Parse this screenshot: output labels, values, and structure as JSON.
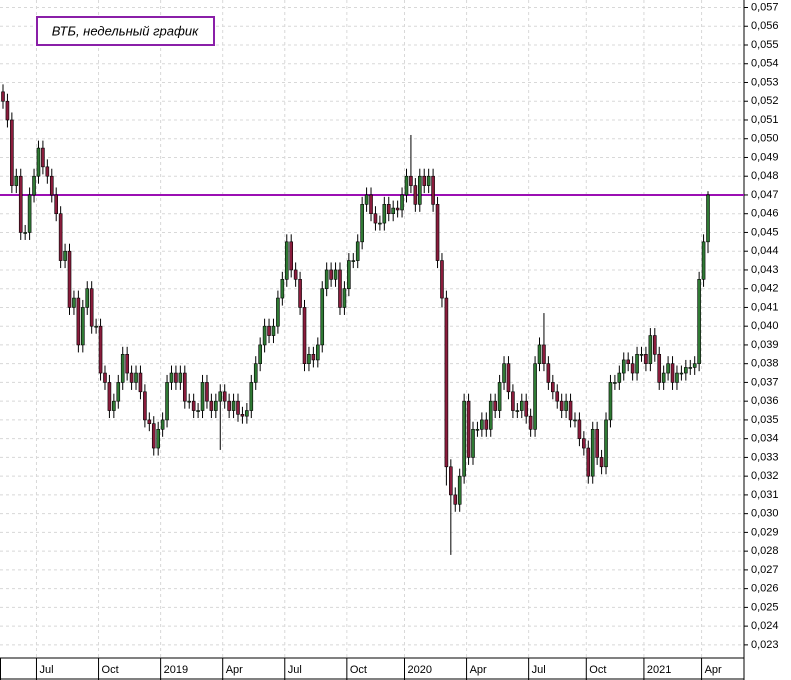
{
  "chart_data": {
    "type": "candlestick",
    "title": "ВТБ, недельный график",
    "categories": [
      null,
      null,
      null,
      null,
      null,
      null,
      null,
      null,
      "Jul",
      null,
      null,
      null,
      null,
      null,
      null,
      null,
      null,
      null,
      null,
      null,
      null,
      null,
      "Oct",
      null,
      null,
      null,
      null,
      null,
      null,
      null,
      null,
      null,
      null,
      null,
      null,
      null,
      "2019",
      null,
      null,
      null,
      null,
      null,
      null,
      null,
      null,
      null,
      null,
      null,
      null,
      null,
      "Apr",
      null,
      null,
      null,
      null,
      null,
      null,
      null,
      null,
      null,
      null,
      null,
      null,
      null,
      "Jul",
      null,
      null,
      null,
      null,
      null,
      null,
      null,
      null,
      null,
      null,
      null,
      null,
      null,
      "Oct",
      null,
      null,
      null,
      null,
      null,
      null,
      null,
      null,
      null,
      null,
      null,
      null,
      "2020",
      null,
      null,
      null,
      null,
      null,
      null,
      null,
      null,
      null,
      null,
      null,
      null,
      null,
      "Apr",
      null,
      null,
      null,
      null,
      null,
      null,
      null,
      null,
      null,
      null,
      null,
      null,
      null,
      "Jul",
      null,
      null,
      null,
      null,
      null,
      null,
      null,
      null,
      null,
      null,
      null,
      null,
      "Oct",
      null,
      null,
      null,
      null,
      null,
      null,
      null,
      null,
      null,
      null,
      null,
      null,
      "2021",
      null,
      null,
      null,
      null,
      null,
      null,
      null,
      null,
      null,
      null,
      null,
      null,
      "Apr",
      null
    ],
    "open": [
      0.0525,
      0.052,
      0.051,
      0.0475,
      0.048,
      0.045,
      0.045,
      0.047,
      0.048,
      0.0495,
      0.0485,
      0.048,
      0.047,
      0.046,
      0.0435,
      0.044,
      0.041,
      0.0415,
      0.039,
      0.041,
      0.042,
      0.04,
      0.04,
      0.0375,
      0.037,
      0.0355,
      0.036,
      0.037,
      0.0385,
      0.0375,
      0.037,
      0.0375,
      0.0365,
      0.035,
      0.0348,
      0.0335,
      0.0345,
      0.035,
      0.037,
      0.0375,
      0.037,
      0.0375,
      0.036,
      0.036,
      0.0355,
      0.0355,
      0.037,
      0.036,
      0.0355,
      0.036,
      0.0365,
      0.036,
      0.0355,
      0.036,
      0.0353,
      0.0352,
      0.0355,
      0.037,
      0.038,
      0.039,
      0.04,
      0.0395,
      0.04,
      0.0415,
      0.0425,
      0.0445,
      0.043,
      0.0425,
      0.041,
      0.038,
      0.0385,
      0.0382,
      0.039,
      0.042,
      0.043,
      0.0425,
      0.043,
      0.041,
      0.042,
      0.0435,
      0.0435,
      0.0445,
      0.0465,
      0.047,
      0.046,
      0.0455,
      0.0455,
      0.0465,
      0.046,
      0.0463,
      0.0462,
      0.047,
      0.048,
      0.0475,
      0.0465,
      0.048,
      0.0475,
      0.048,
      0.0465,
      0.0435,
      0.0415,
      0.0325,
      0.031,
      0.0305,
      0.032,
      0.036,
      0.033,
      0.0345,
      0.0345,
      0.035,
      0.0345,
      0.036,
      0.0355,
      0.037,
      0.038,
      0.0365,
      0.0355,
      0.0355,
      0.036,
      0.0352,
      0.0345,
      0.038,
      0.039,
      0.038,
      0.037,
      0.0365,
      0.036,
      0.0355,
      0.036,
      0.035,
      0.035,
      0.034,
      0.0335,
      0.032,
      0.0345,
      0.033,
      0.0325,
      0.035,
      0.037,
      0.037,
      0.0375,
      0.0382,
      0.038,
      0.0375,
      0.0385,
      0.0385,
      0.038,
      0.0395,
      0.0385,
      0.037,
      0.0375,
      0.038,
      0.037,
      0.0375,
      0.0375,
      0.0378,
      0.0378,
      0.038,
      0.0425,
      0.0445
    ],
    "high": [
      0.0529,
      0.0524,
      0.0514,
      0.0484,
      0.0484,
      0.0454,
      0.0474,
      0.0484,
      0.0499,
      0.0499,
      0.0489,
      0.0484,
      0.0474,
      0.0464,
      0.0444,
      0.0444,
      0.0419,
      0.0419,
      0.0414,
      0.0424,
      0.0424,
      0.0404,
      0.0404,
      0.0379,
      0.0374,
      0.0364,
      0.0374,
      0.0389,
      0.0389,
      0.0379,
      0.0379,
      0.0379,
      0.0369,
      0.0354,
      0.0352,
      0.0349,
      0.0354,
      0.0374,
      0.0379,
      0.0379,
      0.0379,
      0.0379,
      0.0364,
      0.0364,
      0.0359,
      0.0374,
      0.0374,
      0.0364,
      0.0364,
      0.0369,
      0.0369,
      0.0364,
      0.0364,
      0.0364,
      0.0357,
      0.0359,
      0.0374,
      0.0384,
      0.0394,
      0.0404,
      0.0404,
      0.0404,
      0.0419,
      0.0429,
      0.0449,
      0.0449,
      0.0434,
      0.0429,
      0.0414,
      0.0389,
      0.0389,
      0.0394,
      0.0424,
      0.0434,
      0.0434,
      0.0434,
      0.0434,
      0.0424,
      0.0439,
      0.0439,
      0.0449,
      0.0469,
      0.0474,
      0.0474,
      0.0464,
      0.0459,
      0.0469,
      0.0469,
      0.0467,
      0.0467,
      0.0474,
      0.0484,
      0.0502,
      0.0479,
      0.0484,
      0.0484,
      0.0484,
      0.0484,
      0.0469,
      0.0439,
      0.0419,
      0.0329,
      0.0314,
      0.0324,
      0.0364,
      0.0364,
      0.0349,
      0.0349,
      0.0354,
      0.0354,
      0.0364,
      0.0364,
      0.0374,
      0.0384,
      0.0384,
      0.0369,
      0.0359,
      0.0364,
      0.0364,
      0.0356,
      0.0384,
      0.0394,
      0.0407,
      0.0384,
      0.0374,
      0.0369,
      0.0364,
      0.0364,
      0.0364,
      0.0354,
      0.0354,
      0.0344,
      0.0339,
      0.0349,
      0.0349,
      0.0334,
      0.0354,
      0.0374,
      0.0374,
      0.0379,
      0.0386,
      0.0386,
      0.0384,
      0.0389,
      0.0389,
      0.0389,
      0.0399,
      0.0399,
      0.0389,
      0.0379,
      0.0384,
      0.0384,
      0.0379,
      0.0379,
      0.0382,
      0.0382,
      0.0384,
      0.0429,
      0.0449,
      0.0472
    ],
    "low": [
      0.0516,
      0.0506,
      0.0471,
      0.0471,
      0.0446,
      0.0446,
      0.0446,
      0.0466,
      0.0476,
      0.0481,
      0.0476,
      0.0466,
      0.0456,
      0.0431,
      0.0431,
      0.0406,
      0.0406,
      0.0386,
      0.0386,
      0.0406,
      0.0396,
      0.0396,
      0.0371,
      0.0366,
      0.0351,
      0.0351,
      0.0356,
      0.0366,
      0.0371,
      0.0366,
      0.0366,
      0.0361,
      0.0346,
      0.0344,
      0.0331,
      0.0331,
      0.0341,
      0.0346,
      0.0366,
      0.0366,
      0.0366,
      0.0356,
      0.0356,
      0.0351,
      0.0351,
      0.0351,
      0.0356,
      0.0351,
      0.0351,
      0.0334,
      0.0356,
      0.0351,
      0.0351,
      0.0349,
      0.0348,
      0.0348,
      0.0351,
      0.0366,
      0.0376,
      0.0386,
      0.0391,
      0.0391,
      0.0396,
      0.0411,
      0.0421,
      0.0426,
      0.0421,
      0.0406,
      0.0376,
      0.0376,
      0.0378,
      0.0378,
      0.0386,
      0.0416,
      0.0421,
      0.0421,
      0.0406,
      0.0406,
      0.0416,
      0.0431,
      0.0431,
      0.0441,
      0.0461,
      0.0456,
      0.0451,
      0.0451,
      0.0451,
      0.0456,
      0.0456,
      0.0458,
      0.0458,
      0.0466,
      0.0471,
      0.0461,
      0.0461,
      0.0471,
      0.0471,
      0.0461,
      0.0431,
      0.041,
      0.0315,
      0.0278,
      0.0301,
      0.0301,
      0.0316,
      0.0326,
      0.0326,
      0.0341,
      0.0341,
      0.0341,
      0.0341,
      0.0351,
      0.0351,
      0.0366,
      0.0361,
      0.0351,
      0.0351,
      0.0351,
      0.0348,
      0.0341,
      0.0341,
      0.0376,
      0.0376,
      0.0366,
      0.0361,
      0.0356,
      0.0351,
      0.0351,
      0.0346,
      0.0346,
      0.0336,
      0.0331,
      0.0316,
      0.0316,
      0.0326,
      0.0321,
      0.0321,
      0.0346,
      0.0366,
      0.0366,
      0.0371,
      0.0376,
      0.0371,
      0.0371,
      0.0381,
      0.0376,
      0.0376,
      0.0381,
      0.0366,
      0.0366,
      0.0371,
      0.0366,
      0.0366,
      0.0371,
      0.0371,
      0.0374,
      0.0374,
      0.0376,
      0.0421,
      0.0439
    ],
    "close": [
      0.052,
      0.051,
      0.0475,
      0.048,
      0.045,
      0.045,
      0.047,
      0.048,
      0.0495,
      0.0485,
      0.048,
      0.047,
      0.046,
      0.0435,
      0.044,
      0.041,
      0.0415,
      0.039,
      0.041,
      0.042,
      0.04,
      0.04,
      0.0375,
      0.037,
      0.0355,
      0.036,
      0.037,
      0.0385,
      0.0375,
      0.037,
      0.0375,
      0.0365,
      0.035,
      0.0348,
      0.0335,
      0.0345,
      0.035,
      0.037,
      0.0375,
      0.037,
      0.0375,
      0.036,
      0.036,
      0.0355,
      0.0355,
      0.037,
      0.036,
      0.0355,
      0.036,
      0.0365,
      0.036,
      0.0355,
      0.036,
      0.0353,
      0.0352,
      0.0355,
      0.037,
      0.038,
      0.039,
      0.04,
      0.0395,
      0.04,
      0.0415,
      0.0425,
      0.0445,
      0.043,
      0.0425,
      0.041,
      0.038,
      0.0385,
      0.0382,
      0.039,
      0.042,
      0.043,
      0.0425,
      0.043,
      0.041,
      0.042,
      0.0435,
      0.0435,
      0.0445,
      0.0465,
      0.047,
      0.046,
      0.0455,
      0.0455,
      0.0465,
      0.046,
      0.0463,
      0.0462,
      0.047,
      0.048,
      0.0475,
      0.0465,
      0.048,
      0.0475,
      0.048,
      0.0465,
      0.0435,
      0.0415,
      0.0325,
      0.031,
      0.0305,
      0.032,
      0.036,
      0.033,
      0.0345,
      0.0345,
      0.035,
      0.0345,
      0.036,
      0.0355,
      0.037,
      0.038,
      0.0365,
      0.0355,
      0.0355,
      0.036,
      0.0352,
      0.0345,
      0.038,
      0.039,
      0.038,
      0.037,
      0.0365,
      0.036,
      0.0355,
      0.036,
      0.035,
      0.035,
      0.034,
      0.0335,
      0.032,
      0.0345,
      0.033,
      0.0325,
      0.035,
      0.037,
      0.037,
      0.0375,
      0.0382,
      0.038,
      0.0375,
      0.0385,
      0.0385,
      0.038,
      0.0395,
      0.0385,
      0.037,
      0.0375,
      0.038,
      0.037,
      0.0375,
      0.0375,
      0.0378,
      0.0378,
      0.038,
      0.0425,
      0.0445,
      0.047
    ],
    "up_color": "#2f7a34",
    "down_color": "#8a1c3c",
    "hline": 0.047,
    "hline_color": "#9b0fb3",
    "ylim": [
      0.0223,
      0.0574
    ],
    "yticks": [
      {
        "value": 0.023,
        "label": "0,023"
      },
      {
        "value": 0.024,
        "label": "0,024"
      },
      {
        "value": 0.025,
        "label": "0,025"
      },
      {
        "value": 0.026,
        "label": "0,026"
      },
      {
        "value": 0.027,
        "label": "0,027"
      },
      {
        "value": 0.028,
        "label": "0,028"
      },
      {
        "value": 0.029,
        "label": "0,029"
      },
      {
        "value": 0.03,
        "label": "0,030"
      },
      {
        "value": 0.031,
        "label": "0,031"
      },
      {
        "value": 0.032,
        "label": "0,032"
      },
      {
        "value": 0.033,
        "label": "0,033"
      },
      {
        "value": 0.034,
        "label": "0,034"
      },
      {
        "value": 0.035,
        "label": "0,035"
      },
      {
        "value": 0.036,
        "label": "0,036"
      },
      {
        "value": 0.037,
        "label": "0,037"
      },
      {
        "value": 0.038,
        "label": "0,038"
      },
      {
        "value": 0.039,
        "label": "0,039"
      },
      {
        "value": 0.04,
        "label": "0,040"
      },
      {
        "value": 0.041,
        "label": "0,041"
      },
      {
        "value": 0.042,
        "label": "0,042"
      },
      {
        "value": 0.043,
        "label": "0,043"
      },
      {
        "value": 0.044,
        "label": "0,044"
      },
      {
        "value": 0.045,
        "label": "0,045"
      },
      {
        "value": 0.046,
        "label": "0,046"
      },
      {
        "value": 0.047,
        "label": "0,047"
      },
      {
        "value": 0.048,
        "label": "0,048"
      },
      {
        "value": 0.049,
        "label": "0,049"
      },
      {
        "value": 0.05,
        "label": "0,050"
      },
      {
        "value": 0.051,
        "label": "0,051"
      },
      {
        "value": 0.052,
        "label": "0,052"
      },
      {
        "value": 0.053,
        "label": "0,053"
      },
      {
        "value": 0.054,
        "label": "0,054"
      },
      {
        "value": 0.055,
        "label": "0,055"
      },
      {
        "value": 0.056,
        "label": "0,056"
      },
      {
        "value": 0.057,
        "label": "0,057"
      }
    ],
    "grid": true
  }
}
